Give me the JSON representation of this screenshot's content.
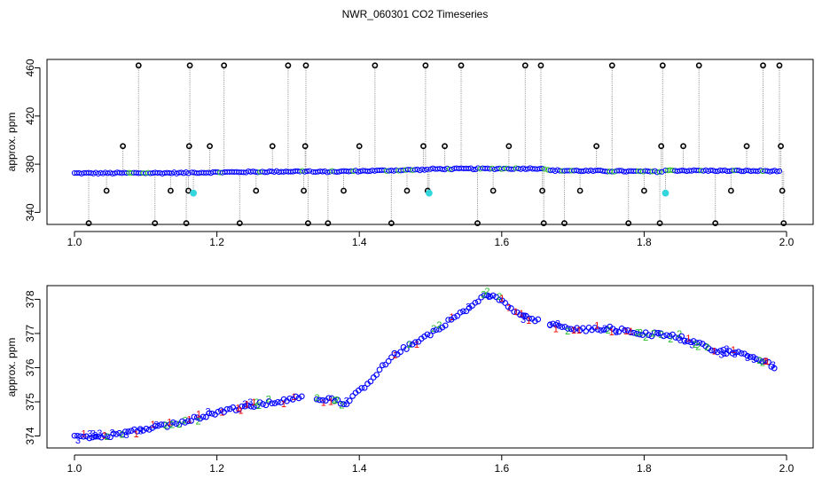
{
  "figure": {
    "title": "NWR_060301  CO2 Timeseries"
  },
  "colors": {
    "black": "#000000",
    "blue": "#0000ff",
    "cyan": "#33d6dd",
    "green": "#22bb22",
    "red": "#ee0000",
    "connector": "#999999"
  },
  "chart_data": [
    {
      "type": "scatter",
      "ylabel": "approx. ppm",
      "xlim": [
        1.0,
        2.0
      ],
      "ylim": [
        330,
        467
      ],
      "x_ticks": [
        "1.0",
        "1.2",
        "1.4",
        "1.6",
        "1.8",
        "2.0"
      ],
      "y_ticks": [
        "340",
        "380",
        "420",
        "460"
      ],
      "baseline_segments": [
        {
          "x0": 1.0,
          "x1": 1.16,
          "y0": 372.5,
          "y1": 372.8
        },
        {
          "x0": 1.165,
          "x1": 1.33,
          "y0": 373.0,
          "y1": 374.2
        },
        {
          "x0": 1.335,
          "x1": 1.495,
          "y0": 373.5,
          "y1": 375.5
        },
        {
          "x0": 1.5,
          "x1": 1.66,
          "y0": 376.0,
          "y1": 376.5
        },
        {
          "x0": 1.665,
          "x1": 1.825,
          "y0": 374.8,
          "y1": 373.8
        },
        {
          "x0": 1.83,
          "x1": 1.99,
          "y0": 374.8,
          "y1": 374.3
        }
      ],
      "outliers_black": [
        {
          "x": 1.02,
          "y": 331
        },
        {
          "x": 1.045,
          "y": 358
        },
        {
          "x": 1.068,
          "y": 395
        },
        {
          "x": 1.09,
          "y": 462
        },
        {
          "x": 1.113,
          "y": 331
        },
        {
          "x": 1.135,
          "y": 358
        },
        {
          "x": 1.157,
          "y": 331
        },
        {
          "x": 1.16,
          "y": 358
        },
        {
          "x": 1.161,
          "y": 395
        },
        {
          "x": 1.162,
          "y": 462
        },
        {
          "x": 1.19,
          "y": 395
        },
        {
          "x": 1.21,
          "y": 462
        },
        {
          "x": 1.232,
          "y": 331
        },
        {
          "x": 1.255,
          "y": 358
        },
        {
          "x": 1.278,
          "y": 395
        },
        {
          "x": 1.3,
          "y": 462
        },
        {
          "x": 1.322,
          "y": 358
        },
        {
          "x": 1.324,
          "y": 395
        },
        {
          "x": 1.325,
          "y": 462
        },
        {
          "x": 1.328,
          "y": 331
        },
        {
          "x": 1.356,
          "y": 331
        },
        {
          "x": 1.378,
          "y": 358
        },
        {
          "x": 1.4,
          "y": 395
        },
        {
          "x": 1.422,
          "y": 462
        },
        {
          "x": 1.445,
          "y": 331
        },
        {
          "x": 1.467,
          "y": 358
        },
        {
          "x": 1.49,
          "y": 395
        },
        {
          "x": 1.493,
          "y": 462
        },
        {
          "x": 1.496,
          "y": 358
        },
        {
          "x": 1.52,
          "y": 395
        },
        {
          "x": 1.543,
          "y": 462
        },
        {
          "x": 1.566,
          "y": 331
        },
        {
          "x": 1.588,
          "y": 358
        },
        {
          "x": 1.61,
          "y": 395
        },
        {
          "x": 1.633,
          "y": 462
        },
        {
          "x": 1.655,
          "y": 462
        },
        {
          "x": 1.657,
          "y": 358
        },
        {
          "x": 1.659,
          "y": 331
        },
        {
          "x": 1.688,
          "y": 331
        },
        {
          "x": 1.71,
          "y": 358
        },
        {
          "x": 1.733,
          "y": 395
        },
        {
          "x": 1.755,
          "y": 462
        },
        {
          "x": 1.778,
          "y": 331
        },
        {
          "x": 1.8,
          "y": 358
        },
        {
          "x": 1.822,
          "y": 331
        },
        {
          "x": 1.824,
          "y": 395
        },
        {
          "x": 1.826,
          "y": 462
        },
        {
          "x": 1.855,
          "y": 395
        },
        {
          "x": 1.877,
          "y": 462
        },
        {
          "x": 1.9,
          "y": 331
        },
        {
          "x": 1.922,
          "y": 358
        },
        {
          "x": 1.944,
          "y": 395
        },
        {
          "x": 1.967,
          "y": 462
        },
        {
          "x": 1.99,
          "y": 462
        },
        {
          "x": 1.992,
          "y": 395
        },
        {
          "x": 1.994,
          "y": 358
        },
        {
          "x": 1.996,
          "y": 331
        }
      ],
      "outliers_cyan": [
        {
          "x": 1.167,
          "y": 356
        },
        {
          "x": 1.498,
          "y": 356
        },
        {
          "x": 1.83,
          "y": 356
        }
      ]
    },
    {
      "type": "scatter",
      "ylabel": "approx. ppm",
      "xlim": [
        1.0,
        2.0
      ],
      "ylim": [
        373.65,
        378.4
      ],
      "x_ticks": [
        "1.0",
        "1.2",
        "1.4",
        "1.6",
        "1.8",
        "2.0"
      ],
      "y_ticks": [
        "374",
        "375",
        "376",
        "377",
        "378"
      ],
      "markers": [
        "1",
        "2",
        "3"
      ],
      "trend_knots": [
        {
          "x": 1.0,
          "y": 373.95
        },
        {
          "x": 1.05,
          "y": 374.0
        },
        {
          "x": 1.1,
          "y": 374.2
        },
        {
          "x": 1.15,
          "y": 374.4
        },
        {
          "x": 1.2,
          "y": 374.7
        },
        {
          "x": 1.25,
          "y": 374.9
        },
        {
          "x": 1.3,
          "y": 375.05
        },
        {
          "x": 1.325,
          "y": 375.2
        },
        {
          "x": 1.34,
          "y": 375.05
        },
        {
          "x": 1.36,
          "y": 375.1
        },
        {
          "x": 1.38,
          "y": 374.95
        },
        {
          "x": 1.4,
          "y": 375.3
        },
        {
          "x": 1.45,
          "y": 376.4
        },
        {
          "x": 1.5,
          "y": 377.0
        },
        {
          "x": 1.55,
          "y": 377.7
        },
        {
          "x": 1.58,
          "y": 378.15
        },
        {
          "x": 1.6,
          "y": 377.95
        },
        {
          "x": 1.63,
          "y": 377.5
        },
        {
          "x": 1.66,
          "y": 377.3
        },
        {
          "x": 1.7,
          "y": 377.1
        },
        {
          "x": 1.75,
          "y": 377.15
        },
        {
          "x": 1.8,
          "y": 377.0
        },
        {
          "x": 1.85,
          "y": 376.9
        },
        {
          "x": 1.9,
          "y": 376.5
        },
        {
          "x": 1.95,
          "y": 376.35
        },
        {
          "x": 1.985,
          "y": 376.0
        }
      ]
    }
  ]
}
